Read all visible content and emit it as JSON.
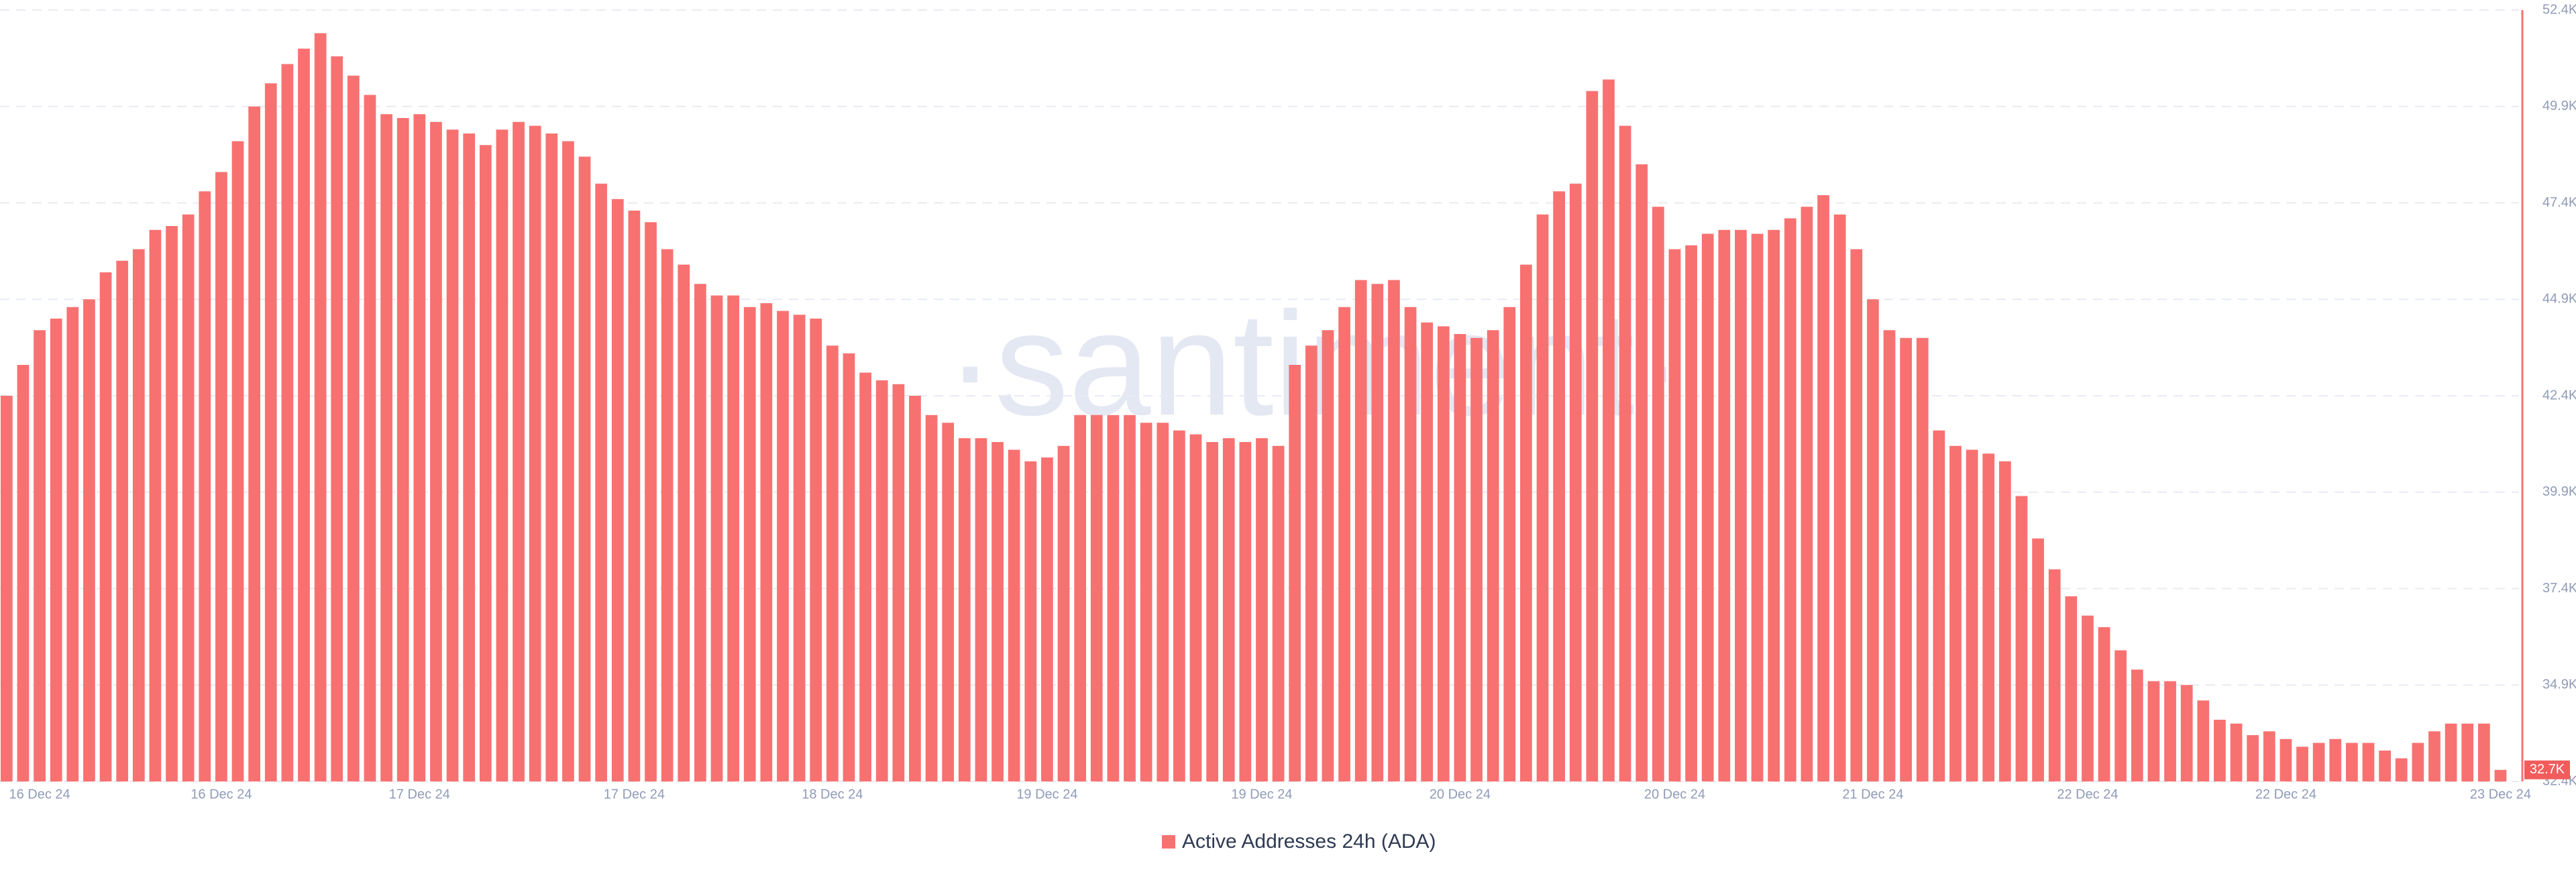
{
  "chart_data": {
    "type": "bar",
    "watermark": "·santiment·",
    "series": [
      {
        "name": "Active Addresses 24h (ADA)",
        "color": "#f87171",
        "values": [
          42400,
          43200,
          44100,
          44400,
          44700,
          44900,
          45600,
          45900,
          46200,
          46700,
          46800,
          47100,
          47700,
          48200,
          49000,
          49900,
          50500,
          51000,
          51400,
          51800,
          51200,
          50700,
          50200,
          49700,
          49600,
          49700,
          49500,
          49300,
          49200,
          48900,
          49300,
          49500,
          49400,
          49200,
          49000,
          48600,
          47900,
          47500,
          47200,
          46900,
          46200,
          45800,
          45300,
          45000,
          45000,
          44700,
          44800,
          44600,
          44500,
          44400,
          43700,
          43500,
          43000,
          42800,
          42700,
          42400,
          41900,
          41700,
          41300,
          41300,
          41200,
          41000,
          40700,
          40800,
          41100,
          41900,
          41900,
          41900,
          41900,
          41700,
          41700,
          41500,
          41400,
          41200,
          41300,
          41200,
          41300,
          41100,
          43200,
          43700,
          44100,
          44700,
          45400,
          45300,
          45400,
          44700,
          44300,
          44200,
          44000,
          43900,
          44100,
          44700,
          45800,
          47100,
          47700,
          47900,
          50300,
          50600,
          49400,
          48400,
          47300,
          46200,
          46300,
          46600,
          46700,
          46700,
          46600,
          46700,
          47000,
          47300,
          47600,
          47100,
          46200,
          44900,
          44100,
          43900,
          43900,
          41500,
          41100,
          41000,
          40900,
          40700,
          39800,
          38700,
          37900,
          37200,
          36700,
          36400,
          35800,
          35300,
          35000,
          35000,
          34900,
          34500,
          34000,
          33900,
          33600,
          33700,
          33500,
          33300,
          33400,
          33500,
          33400,
          33400,
          33200,
          33000,
          33400,
          33700,
          33900,
          33900,
          33900,
          32700
        ]
      }
    ],
    "categories": [
      null,
      null,
      "16 Dec 24",
      null,
      null,
      null,
      null,
      null,
      null,
      null,
      null,
      null,
      null,
      "16 Dec 24",
      null,
      null,
      null,
      null,
      null,
      null,
      null,
      null,
      null,
      null,
      null,
      "17 Dec 24",
      null,
      null,
      null,
      null,
      null,
      null,
      null,
      null,
      null,
      null,
      null,
      null,
      "17 Dec 24",
      null,
      null,
      null,
      null,
      null,
      null,
      null,
      null,
      null,
      null,
      null,
      "18 Dec 24",
      null,
      null,
      null,
      null,
      null,
      null,
      null,
      null,
      null,
      null,
      null,
      null,
      "19 Dec 24",
      null,
      null,
      null,
      null,
      null,
      null,
      null,
      null,
      null,
      null,
      null,
      null,
      "19 Dec 24",
      null,
      null,
      null,
      null,
      null,
      null,
      null,
      null,
      null,
      null,
      null,
      "20 Dec 24",
      null,
      null,
      null,
      null,
      null,
      null,
      null,
      null,
      null,
      null,
      null,
      null,
      "20 Dec 24",
      null,
      null,
      null,
      null,
      null,
      null,
      null,
      null,
      null,
      null,
      null,
      "21 Dec 24",
      null,
      null,
      null,
      null,
      null,
      null,
      null,
      null,
      null,
      null,
      null,
      null,
      "22 Dec 24",
      null,
      null,
      null,
      null,
      null,
      null,
      null,
      null,
      null,
      null,
      null,
      "22 Dec 24",
      null,
      null,
      null,
      null,
      null,
      null,
      null,
      null,
      null,
      null,
      null,
      null,
      "23 Dec 24"
    ],
    "last_value": {
      "value": 32700,
      "label": "32.7K"
    },
    "ylim": [
      32400,
      52400
    ],
    "yticks": [
      {
        "value": 32400,
        "label": "32.4K"
      },
      {
        "value": 34900,
        "label": "34.9K"
      },
      {
        "value": 37400,
        "label": "37.4K"
      },
      {
        "value": 39900,
        "label": "39.9K"
      },
      {
        "value": 42400,
        "label": "42.4K"
      },
      {
        "value": 44900,
        "label": "44.9K"
      },
      {
        "value": 47400,
        "label": "47.4K"
      },
      {
        "value": 49900,
        "label": "49.9K"
      },
      {
        "value": 52400,
        "label": "52.4K"
      }
    ],
    "grid": true
  }
}
